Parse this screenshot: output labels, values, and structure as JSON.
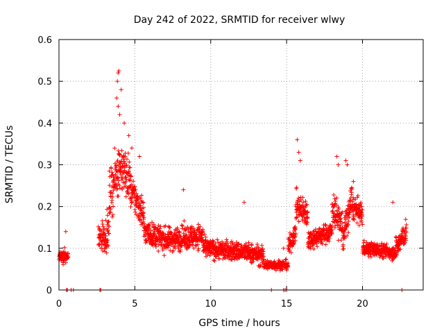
{
  "chart_data": {
    "type": "scatter",
    "title": "Day 242 of 2022, SRMTID for receiver wlwy",
    "xlabel": "GPS time / hours",
    "ylabel": "SRMTID / TECUs",
    "xlim": [
      0,
      24
    ],
    "ylim": [
      0,
      0.6
    ],
    "xticks": [
      0,
      5,
      10,
      15,
      20
    ],
    "xtick_labels": [
      "0",
      "5",
      "10",
      "15",
      "20"
    ],
    "yticks": [
      0,
      0.1,
      0.2,
      0.3,
      0.4,
      0.5,
      0.6
    ],
    "ytick_labels": [
      "0",
      "0.1",
      "0.2",
      "0.3",
      "0.4",
      "0.5",
      "0.6"
    ],
    "grid": true,
    "marker": "+",
    "color": "#ff0000",
    "series": [
      {
        "name": "SRMTID",
        "segments": [
          {
            "x_start": 0.0,
            "x_end": 0.6,
            "center": [
              0.08,
              0.08
            ],
            "spread": 0.03
          },
          {
            "x_start": 2.6,
            "x_end": 3.3,
            "center": [
              0.12,
              0.14
            ],
            "spread": 0.07
          },
          {
            "x_start": 3.3,
            "x_end": 4.0,
            "center": [
              0.22,
              0.3
            ],
            "spread": 0.1
          },
          {
            "x_start": 4.0,
            "x_end": 4.7,
            "center": [
              0.3,
              0.26
            ],
            "spread": 0.1
          },
          {
            "x_start": 4.7,
            "x_end": 5.6,
            "center": [
              0.24,
              0.18
            ],
            "spread": 0.07
          },
          {
            "x_start": 5.6,
            "x_end": 7.0,
            "center": [
              0.14,
              0.12
            ],
            "spread": 0.05
          },
          {
            "x_start": 7.0,
            "x_end": 9.5,
            "center": [
              0.12,
              0.13
            ],
            "spread": 0.05
          },
          {
            "x_start": 9.5,
            "x_end": 12.5,
            "center": [
              0.1,
              0.09
            ],
            "spread": 0.04
          },
          {
            "x_start": 12.5,
            "x_end": 13.5,
            "center": [
              0.09,
              0.08
            ],
            "spread": 0.04
          },
          {
            "x_start": 13.5,
            "x_end": 15.1,
            "center": [
              0.06,
              0.06
            ],
            "spread": 0.02
          },
          {
            "x_start": 15.1,
            "x_end": 15.6,
            "center": [
              0.1,
              0.14
            ],
            "spread": 0.04
          },
          {
            "x_start": 15.6,
            "x_end": 16.4,
            "center": [
              0.2,
              0.18
            ],
            "spread": 0.06
          },
          {
            "x_start": 16.4,
            "x_end": 18.0,
            "center": [
              0.12,
              0.14
            ],
            "spread": 0.04
          },
          {
            "x_start": 18.0,
            "x_end": 18.7,
            "center": [
              0.2,
              0.15
            ],
            "spread": 0.07
          },
          {
            "x_start": 18.7,
            "x_end": 19.3,
            "center": [
              0.12,
              0.22
            ],
            "spread": 0.07
          },
          {
            "x_start": 19.3,
            "x_end": 20.0,
            "center": [
              0.2,
              0.18
            ],
            "spread": 0.05
          },
          {
            "x_start": 20.0,
            "x_end": 22.2,
            "center": [
              0.1,
              0.09
            ],
            "spread": 0.03
          },
          {
            "x_start": 22.2,
            "x_end": 22.9,
            "center": [
              0.1,
              0.14
            ],
            "spread": 0.05
          }
        ],
        "outliers": [
          {
            "x": 3.9,
            "y": 0.52
          },
          {
            "x": 3.95,
            "y": 0.525
          },
          {
            "x": 3.85,
            "y": 0.5
          },
          {
            "x": 4.1,
            "y": 0.48
          },
          {
            "x": 3.8,
            "y": 0.46
          },
          {
            "x": 3.9,
            "y": 0.44
          },
          {
            "x": 4.0,
            "y": 0.42
          },
          {
            "x": 4.3,
            "y": 0.4
          },
          {
            "x": 4.6,
            "y": 0.37
          },
          {
            "x": 4.8,
            "y": 0.34
          },
          {
            "x": 5.3,
            "y": 0.32
          },
          {
            "x": 0.45,
            "y": 0.14
          },
          {
            "x": 15.7,
            "y": 0.36
          },
          {
            "x": 15.8,
            "y": 0.33
          },
          {
            "x": 15.9,
            "y": 0.31
          },
          {
            "x": 18.3,
            "y": 0.32
          },
          {
            "x": 18.4,
            "y": 0.3
          },
          {
            "x": 18.9,
            "y": 0.31
          },
          {
            "x": 19.0,
            "y": 0.3
          },
          {
            "x": 19.4,
            "y": 0.26
          },
          {
            "x": 8.2,
            "y": 0.24
          },
          {
            "x": 12.2,
            "y": 0.21
          },
          {
            "x": 22.0,
            "y": 0.21
          },
          {
            "x": 14.8,
            "y": 0.1
          }
        ],
        "zero_points": [
          0.5,
          0.55,
          0.8,
          0.95,
          2.7,
          2.75,
          14.0,
          14.8,
          14.9,
          15.0,
          22.6
        ]
      }
    ]
  }
}
